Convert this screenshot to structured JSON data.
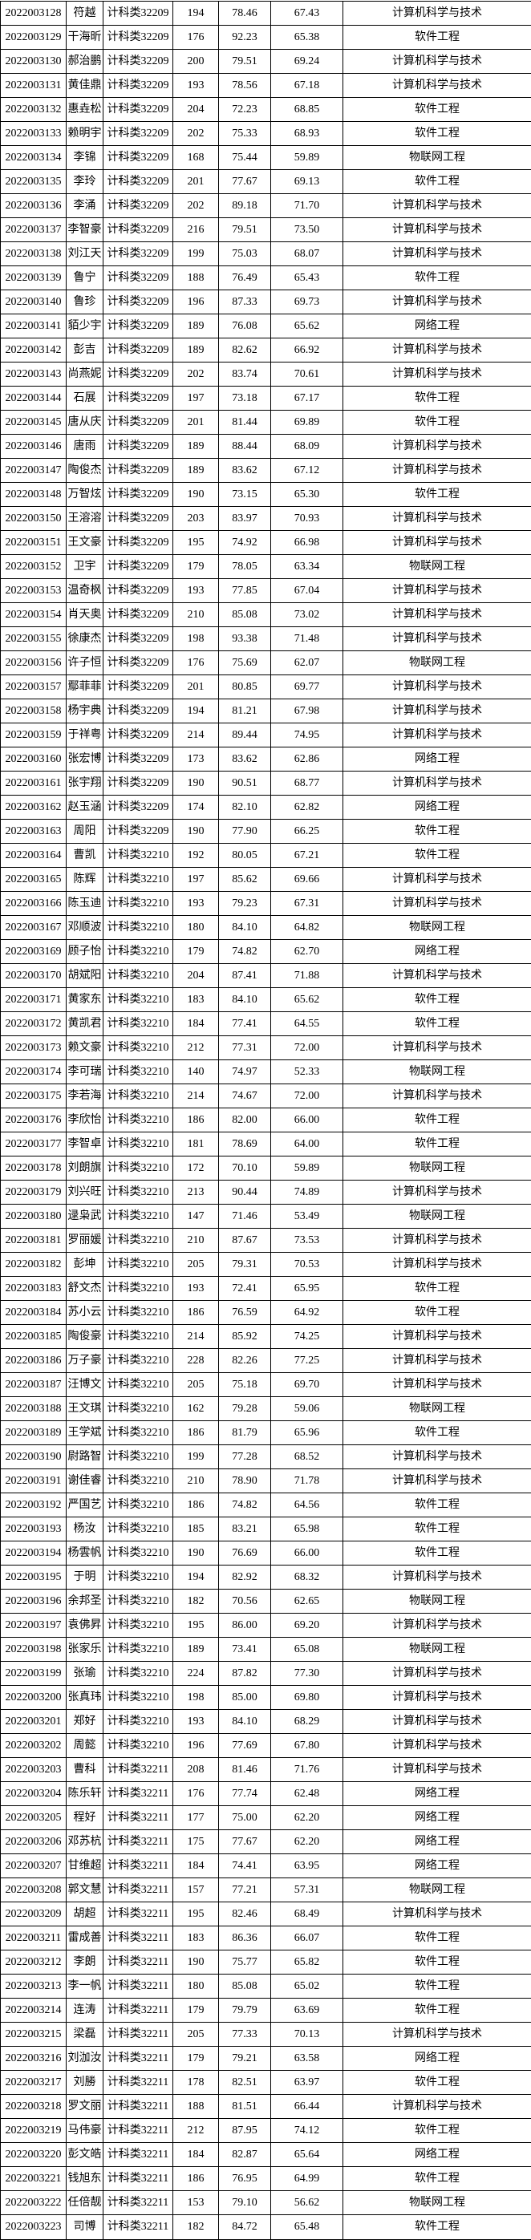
{
  "page": {
    "background": "#ffffff"
  },
  "table": {
    "border_color": "#000000",
    "text_color": "#000000",
    "class_labels": [
      "计科类32209",
      "计科类32210",
      "计科类32211"
    ],
    "major_labels": [
      "计算机科学与技术",
      "软件工程",
      "网络工程",
      "物联网工程"
    ],
    "rows": [
      [
        "2022003128",
        "符越",
        "计科类32209",
        "194",
        "78.46",
        "67.43",
        "计算机科学与技术"
      ],
      [
        "2022003129",
        "干海昕",
        "计科类32209",
        "176",
        "92.23",
        "65.38",
        "软件工程"
      ],
      [
        "2022003130",
        "郝治鹏",
        "计科类32209",
        "200",
        "79.51",
        "69.24",
        "计算机科学与技术"
      ],
      [
        "2022003131",
        "黄佳鼎",
        "计科类32209",
        "193",
        "78.56",
        "67.18",
        "计算机科学与技术"
      ],
      [
        "2022003132",
        "惠垚松",
        "计科类32209",
        "204",
        "72.23",
        "68.85",
        "软件工程"
      ],
      [
        "2022003133",
        "赖明宇",
        "计科类32209",
        "202",
        "75.33",
        "68.93",
        "软件工程"
      ],
      [
        "2022003134",
        "李锦",
        "计科类32209",
        "168",
        "75.44",
        "59.89",
        "物联网工程"
      ],
      [
        "2022003135",
        "李玲",
        "计科类32209",
        "201",
        "77.67",
        "69.13",
        "软件工程"
      ],
      [
        "2022003136",
        "李涌",
        "计科类32209",
        "202",
        "89.18",
        "71.70",
        "计算机科学与技术"
      ],
      [
        "2022003137",
        "李智豪",
        "计科类32209",
        "216",
        "79.51",
        "73.50",
        "计算机科学与技术"
      ],
      [
        "2022003138",
        "刘江天",
        "计科类32209",
        "199",
        "75.03",
        "68.07",
        "计算机科学与技术"
      ],
      [
        "2022003139",
        "鲁宁",
        "计科类32209",
        "188",
        "76.49",
        "65.43",
        "软件工程"
      ],
      [
        "2022003140",
        "鲁珍",
        "计科类32209",
        "196",
        "87.33",
        "69.73",
        "计算机科学与技术"
      ],
      [
        "2022003141",
        "貊少宇",
        "计科类32209",
        "189",
        "76.08",
        "65.62",
        "网络工程"
      ],
      [
        "2022003142",
        "彭吉",
        "计科类32209",
        "189",
        "82.62",
        "66.92",
        "计算机科学与技术"
      ],
      [
        "2022003143",
        "尚燕妮",
        "计科类32209",
        "202",
        "83.74",
        "70.61",
        "计算机科学与技术"
      ],
      [
        "2022003144",
        "石展",
        "计科类32209",
        "197",
        "73.18",
        "67.17",
        "软件工程"
      ],
      [
        "2022003145",
        "唐从庆",
        "计科类32209",
        "201",
        "81.44",
        "69.89",
        "软件工程"
      ],
      [
        "2022003146",
        "唐雨",
        "计科类32209",
        "189",
        "88.44",
        "68.09",
        "计算机科学与技术"
      ],
      [
        "2022003147",
        "陶俊杰",
        "计科类32209",
        "189",
        "83.62",
        "67.12",
        "计算机科学与技术"
      ],
      [
        "2022003148",
        "万智炫",
        "计科类32209",
        "190",
        "73.15",
        "65.30",
        "软件工程"
      ],
      [
        "2022003150",
        "王溶溶",
        "计科类32209",
        "203",
        "83.97",
        "70.93",
        "计算机科学与技术"
      ],
      [
        "2022003151",
        "王文豪",
        "计科类32209",
        "195",
        "74.92",
        "66.98",
        "计算机科学与技术"
      ],
      [
        "2022003152",
        "卫宇",
        "计科类32209",
        "179",
        "78.05",
        "63.34",
        "物联网工程"
      ],
      [
        "2022003153",
        "温奇枫",
        "计科类32209",
        "193",
        "77.85",
        "67.04",
        "计算机科学与技术"
      ],
      [
        "2022003154",
        "肖天奥",
        "计科类32209",
        "210",
        "85.08",
        "73.02",
        "计算机科学与技术"
      ],
      [
        "2022003155",
        "徐康杰",
        "计科类32209",
        "198",
        "93.38",
        "71.48",
        "计算机科学与技术"
      ],
      [
        "2022003156",
        "许子恒",
        "计科类32209",
        "176",
        "75.69",
        "62.07",
        "物联网工程"
      ],
      [
        "2022003157",
        "鄢菲菲",
        "计科类32209",
        "201",
        "80.85",
        "69.77",
        "计算机科学与技术"
      ],
      [
        "2022003158",
        "杨宇典",
        "计科类32209",
        "194",
        "81.21",
        "67.98",
        "计算机科学与技术"
      ],
      [
        "2022003159",
        "于祥粤",
        "计科类32209",
        "214",
        "89.44",
        "74.95",
        "计算机科学与技术"
      ],
      [
        "2022003160",
        "张宏博",
        "计科类32209",
        "173",
        "83.62",
        "62.86",
        "网络工程"
      ],
      [
        "2022003161",
        "张宇翔",
        "计科类32209",
        "190",
        "90.51",
        "68.77",
        "计算机科学与技术"
      ],
      [
        "2022003162",
        "赵玉涵",
        "计科类32209",
        "174",
        "82.10",
        "62.82",
        "网络工程"
      ],
      [
        "2022003163",
        "周阳",
        "计科类32209",
        "190",
        "77.90",
        "66.25",
        "软件工程"
      ],
      [
        "2022003164",
        "曹凯",
        "计科类32210",
        "192",
        "80.05",
        "67.21",
        "软件工程"
      ],
      [
        "2022003165",
        "陈辉",
        "计科类32210",
        "197",
        "85.62",
        "69.66",
        "计算机科学与技术"
      ],
      [
        "2022003166",
        "陈玉迪",
        "计科类32210",
        "193",
        "79.23",
        "67.31",
        "计算机科学与技术"
      ],
      [
        "2022003167",
        "邓顺波",
        "计科类32210",
        "180",
        "84.10",
        "64.82",
        "物联网工程"
      ],
      [
        "2022003169",
        "顾子怡",
        "计科类32210",
        "179",
        "74.82",
        "62.70",
        "网络工程"
      ],
      [
        "2022003170",
        "胡斌阳",
        "计科类32210",
        "204",
        "87.41",
        "71.88",
        "计算机科学与技术"
      ],
      [
        "2022003171",
        "黄家东",
        "计科类32210",
        "183",
        "84.10",
        "65.62",
        "软件工程"
      ],
      [
        "2022003172",
        "黄凯君",
        "计科类32210",
        "184",
        "77.41",
        "64.55",
        "软件工程"
      ],
      [
        "2022003173",
        "赖文豪",
        "计科类32210",
        "212",
        "77.31",
        "72.00",
        "计算机科学与技术"
      ],
      [
        "2022003174",
        "李可瑞",
        "计科类32210",
        "140",
        "74.97",
        "52.33",
        "物联网工程"
      ],
      [
        "2022003175",
        "李若海",
        "计科类32210",
        "214",
        "74.67",
        "72.00",
        "计算机科学与技术"
      ],
      [
        "2022003176",
        "李欣怡",
        "计科类32210",
        "186",
        "82.00",
        "66.00",
        "软件工程"
      ],
      [
        "2022003177",
        "李智卓",
        "计科类32210",
        "181",
        "78.69",
        "64.00",
        "软件工程"
      ],
      [
        "2022003178",
        "刘朗旗",
        "计科类32210",
        "172",
        "70.10",
        "59.89",
        "物联网工程"
      ],
      [
        "2022003179",
        "刘兴旺",
        "计科类32210",
        "213",
        "90.44",
        "74.89",
        "计算机科学与技术"
      ],
      [
        "2022003180",
        "逯枭武",
        "计科类32210",
        "147",
        "71.46",
        "53.49",
        "物联网工程"
      ],
      [
        "2022003181",
        "罗丽媛",
        "计科类32210",
        "210",
        "87.67",
        "73.53",
        "计算机科学与技术"
      ],
      [
        "2022003182",
        "彭坤",
        "计科类32210",
        "205",
        "79.31",
        "70.53",
        "计算机科学与技术"
      ],
      [
        "2022003183",
        "舒文杰",
        "计科类32210",
        "193",
        "72.41",
        "65.95",
        "软件工程"
      ],
      [
        "2022003184",
        "苏小云",
        "计科类32210",
        "186",
        "76.59",
        "64.92",
        "软件工程"
      ],
      [
        "2022003185",
        "陶俊豪",
        "计科类32210",
        "214",
        "85.92",
        "74.25",
        "计算机科学与技术"
      ],
      [
        "2022003186",
        "万子豪",
        "计科类32210",
        "228",
        "82.26",
        "77.25",
        "计算机科学与技术"
      ],
      [
        "2022003187",
        "汪博文",
        "计科类32210",
        "205",
        "75.18",
        "69.70",
        "计算机科学与技术"
      ],
      [
        "2022003188",
        "王文琪",
        "计科类32210",
        "162",
        "79.28",
        "59.06",
        "物联网工程"
      ],
      [
        "2022003189",
        "王学斌",
        "计科类32210",
        "186",
        "81.79",
        "65.96",
        "软件工程"
      ],
      [
        "2022003190",
        "尉路智",
        "计科类32210",
        "199",
        "77.28",
        "68.52",
        "计算机科学与技术"
      ],
      [
        "2022003191",
        "谢佳睿",
        "计科类32210",
        "210",
        "78.90",
        "71.78",
        "计算机科学与技术"
      ],
      [
        "2022003192",
        "严国艺",
        "计科类32210",
        "186",
        "74.82",
        "64.56",
        "软件工程"
      ],
      [
        "2022003193",
        "杨汝",
        "计科类32210",
        "185",
        "83.21",
        "65.98",
        "软件工程"
      ],
      [
        "2022003194",
        "杨雲帆",
        "计科类32210",
        "190",
        "76.69",
        "66.00",
        "软件工程"
      ],
      [
        "2022003195",
        "于明",
        "计科类32210",
        "194",
        "82.92",
        "68.32",
        "计算机科学与技术"
      ],
      [
        "2022003196",
        "余邦圣",
        "计科类32210",
        "182",
        "70.56",
        "62.65",
        "物联网工程"
      ],
      [
        "2022003197",
        "袁佛昇",
        "计科类32210",
        "195",
        "86.00",
        "69.20",
        "计算机科学与技术"
      ],
      [
        "2022003198",
        "张家乐",
        "计科类32210",
        "189",
        "73.41",
        "65.08",
        "物联网工程"
      ],
      [
        "2022003199",
        "张瑜",
        "计科类32210",
        "224",
        "87.82",
        "77.30",
        "计算机科学与技术"
      ],
      [
        "2022003200",
        "张真玮",
        "计科类32210",
        "198",
        "85.00",
        "69.80",
        "计算机科学与技术"
      ],
      [
        "2022003201",
        "郑好",
        "计科类32210",
        "193",
        "84.10",
        "68.29",
        "计算机科学与技术"
      ],
      [
        "2022003202",
        "周懿",
        "计科类32210",
        "196",
        "77.69",
        "67.80",
        "计算机科学与技术"
      ],
      [
        "2022003203",
        "曹科",
        "计科类32211",
        "208",
        "81.46",
        "71.76",
        "计算机科学与技术"
      ],
      [
        "2022003204",
        "陈乐轩",
        "计科类32211",
        "176",
        "77.74",
        "62.48",
        "网络工程"
      ],
      [
        "2022003205",
        "程好",
        "计科类32211",
        "177",
        "75.00",
        "62.20",
        "网络工程"
      ],
      [
        "2022003206",
        "邓苏杭",
        "计科类32211",
        "175",
        "77.67",
        "62.20",
        "网络工程"
      ],
      [
        "2022003207",
        "甘维超",
        "计科类32211",
        "184",
        "74.41",
        "63.95",
        "网络工程"
      ],
      [
        "2022003208",
        "郭文慧",
        "计科类32211",
        "157",
        "77.21",
        "57.31",
        "物联网工程"
      ],
      [
        "2022003209",
        "胡超",
        "计科类32211",
        "195",
        "82.46",
        "68.49",
        "计算机科学与技术"
      ],
      [
        "2022003211",
        "雷成善",
        "计科类32211",
        "183",
        "86.36",
        "66.07",
        "软件工程"
      ],
      [
        "2022003212",
        "李朗",
        "计科类32211",
        "190",
        "75.77",
        "65.82",
        "软件工程"
      ],
      [
        "2022003213",
        "李一帆",
        "计科类32211",
        "180",
        "85.08",
        "65.02",
        "软件工程"
      ],
      [
        "2022003214",
        "连涛",
        "计科类32211",
        "179",
        "79.79",
        "63.69",
        "软件工程"
      ],
      [
        "2022003215",
        "梁磊",
        "计科类32211",
        "205",
        "77.33",
        "70.13",
        "计算机科学与技术"
      ],
      [
        "2022003216",
        "刘泇汝",
        "计科类32211",
        "179",
        "79.21",
        "63.58",
        "网络工程"
      ],
      [
        "2022003217",
        "刘勝",
        "计科类32211",
        "178",
        "82.51",
        "63.97",
        "软件工程"
      ],
      [
        "2022003218",
        "罗文丽",
        "计科类32211",
        "188",
        "81.51",
        "66.44",
        "计算机科学与技术"
      ],
      [
        "2022003219",
        "马伟豪",
        "计科类32211",
        "212",
        "87.95",
        "74.12",
        "软件工程"
      ],
      [
        "2022003220",
        "彭文皓",
        "计科类32211",
        "184",
        "82.87",
        "65.64",
        "网络工程"
      ],
      [
        "2022003221",
        "钱旭东",
        "计科类32211",
        "186",
        "76.95",
        "64.99",
        "软件工程"
      ],
      [
        "2022003222",
        "任倍靓",
        "计科类32211",
        "153",
        "79.10",
        "56.62",
        "物联网工程"
      ],
      [
        "2022003223",
        "司博",
        "计科类32211",
        "182",
        "84.72",
        "65.48",
        "软件工程"
      ]
    ]
  }
}
